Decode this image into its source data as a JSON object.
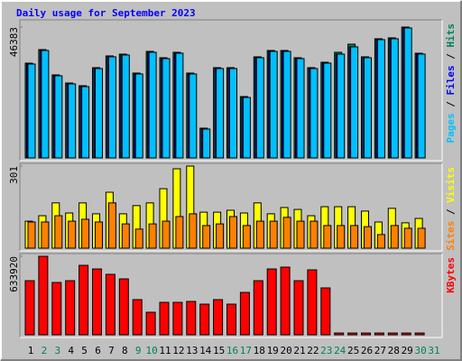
{
  "chart_data": [
    {
      "type": "bar",
      "title": "Daily usage for September 2023",
      "legend_separator": " / ",
      "ylim": [
        0,
        46383
      ],
      "yticks": [
        46383
      ],
      "series": [
        {
          "name": "Hits",
          "color": "#00805c",
          "values": [
            33600,
            38400,
            29440,
            26560,
            25600,
            32000,
            36160,
            36800,
            30080,
            37760,
            35520,
            37440,
            30080,
            10560,
            32000,
            32000,
            21760,
            35840,
            38080,
            38080,
            35520,
            32000,
            33920,
            37440,
            40320,
            35840,
            42240,
            42560,
            46383,
            37120,
            null
          ]
        },
        {
          "name": "Files",
          "color": "#0000ff",
          "values": [
            33280,
            38080,
            29120,
            26240,
            25280,
            31680,
            35840,
            36480,
            29760,
            37440,
            35200,
            37120,
            29760,
            10240,
            31680,
            31680,
            21440,
            35520,
            37760,
            37760,
            35200,
            31680,
            33600,
            36800,
            39360,
            35520,
            41920,
            42240,
            46080,
            36800,
            null
          ]
        },
        {
          "name": "Pages",
          "color": "#00c0ff",
          "values": [
            33280,
            38080,
            29120,
            26240,
            25280,
            31680,
            35840,
            36480,
            29760,
            37440,
            35200,
            37120,
            29760,
            10240,
            31680,
            31680,
            21440,
            35520,
            37760,
            37760,
            35200,
            31680,
            33600,
            36800,
            39360,
            35520,
            41920,
            42240,
            46080,
            36800,
            null
          ]
        }
      ]
    },
    {
      "type": "bar",
      "legend_separator": " / ",
      "ylim": [
        0,
        301
      ],
      "yticks": [
        301
      ],
      "series": [
        {
          "name": "Visits",
          "color": "#ffff00",
          "values": [
            99,
            119,
            166,
            129,
            166,
            126,
            205,
            126,
            156,
            166,
            218,
            291,
            301,
            132,
            132,
            139,
            129,
            166,
            126,
            149,
            142,
            119,
            152,
            152,
            152,
            136,
            96,
            146,
            93,
            109,
            null
          ]
        },
        {
          "name": "Sites",
          "color": "#ff8000",
          "values": [
            96,
            96,
            119,
            99,
            106,
            96,
            166,
            89,
            70,
            89,
            99,
            116,
            126,
            83,
            89,
            116,
            83,
            99,
            99,
            113,
            99,
            99,
            83,
            83,
            83,
            79,
            50,
            83,
            73,
            73,
            null
          ]
        }
      ]
    },
    {
      "type": "bar",
      "ylim": [
        0,
        633920
      ],
      "yticks": [
        633920
      ],
      "categories": [
        "1",
        "2",
        "3",
        "4",
        "5",
        "6",
        "7",
        "8",
        "9",
        "10",
        "11",
        "12",
        "13",
        "14",
        "15",
        "16",
        "17",
        "18",
        "19",
        "20",
        "21",
        "22",
        "23",
        "24",
        "25",
        "26",
        "27",
        "28",
        "29",
        "30",
        "31"
      ],
      "category_colors": [
        "#000000",
        "#00805c",
        "#00805c",
        "#000000",
        "#000000",
        "#000000",
        "#000000",
        "#000000",
        "#00805c",
        "#00805c",
        "#000000",
        "#000000",
        "#000000",
        "#000000",
        "#000000",
        "#00805c",
        "#00805c",
        "#000000",
        "#000000",
        "#000000",
        "#000000",
        "#000000",
        "#00805c",
        "#00805c",
        "#000000",
        "#000000",
        "#000000",
        "#000000",
        "#000000",
        "#00805c",
        "#00805c"
      ],
      "series": [
        {
          "name": "KBytes",
          "color": "#ff0000",
          "values": [
            437000,
            633920,
            422600,
            437000,
            561000,
            531900,
            488200,
            451700,
            284200,
            182200,
            262300,
            262300,
            269600,
            247700,
            284200,
            247700,
            342400,
            437000,
            531900,
            546500,
            437000,
            524600,
            378900,
            14600,
            14600,
            14600,
            14600,
            14600,
            14600,
            14600,
            null
          ]
        }
      ]
    }
  ]
}
